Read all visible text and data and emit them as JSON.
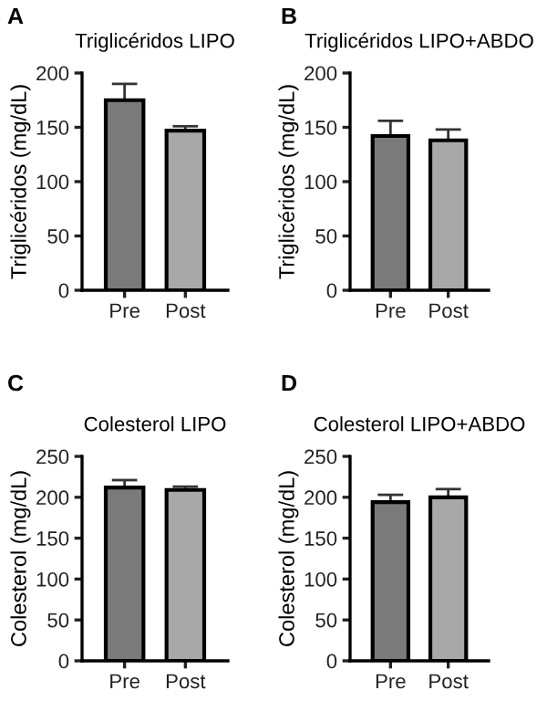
{
  "chart_data": [
    {
      "type": "bar",
      "title": "Triglicéridos LIPO",
      "ylabel": "Triglicéridos (mg/dL)",
      "categories": [
        "Pre",
        "Post"
      ],
      "values": [
        175,
        147
      ],
      "colors": [
        "#7a7a7a",
        "#a8a8a8"
      ],
      "errors": [
        [
          175,
          190
        ],
        [
          147,
          151
        ]
      ],
      "ylim": [
        0,
        200
      ],
      "yticks": [
        0,
        50,
        100,
        150,
        200
      ],
      "grid": false,
      "annotations": [
        "A"
      ]
    },
    {
      "type": "bar",
      "title": "Triglicéridos LIPO+ABDO",
      "ylabel": "Triglicéridos (mg/dL)",
      "categories": [
        "Pre",
        "Post"
      ],
      "values": [
        142,
        138
      ],
      "colors": [
        "#7a7a7a",
        "#a8a8a8"
      ],
      "errors": [
        [
          142,
          156
        ],
        [
          138,
          148
        ]
      ],
      "ylim": [
        0,
        200
      ],
      "yticks": [
        0,
        50,
        100,
        150,
        200
      ],
      "grid": false,
      "annotations": [
        "B"
      ]
    },
    {
      "type": "bar",
      "title": "Colesterol LIPO",
      "ylabel": "Colesterol (mg/dL)",
      "categories": [
        "Pre",
        "Post"
      ],
      "values": [
        212,
        209
      ],
      "colors": [
        "#7a7a7a",
        "#a8a8a8"
      ],
      "errors": [
        [
          212,
          221
        ],
        [
          209,
          213
        ]
      ],
      "ylim": [
        0,
        250
      ],
      "yticks": [
        0,
        50,
        100,
        150,
        200,
        250
      ],
      "grid": false,
      "annotations": [
        "C"
      ]
    },
    {
      "type": "bar",
      "title": "Colesterol LIPO+ABDO",
      "ylabel": "Colesterol (mg/dL)",
      "categories": [
        "Pre",
        "Post"
      ],
      "values": [
        194,
        200
      ],
      "colors": [
        "#7a7a7a",
        "#a8a8a8"
      ],
      "errors": [
        [
          194,
          203
        ],
        [
          200,
          210
        ]
      ],
      "ylim": [
        0,
        250
      ],
      "yticks": [
        0,
        50,
        100,
        150,
        200,
        250
      ],
      "grid": false,
      "annotations": [
        "D"
      ]
    }
  ]
}
